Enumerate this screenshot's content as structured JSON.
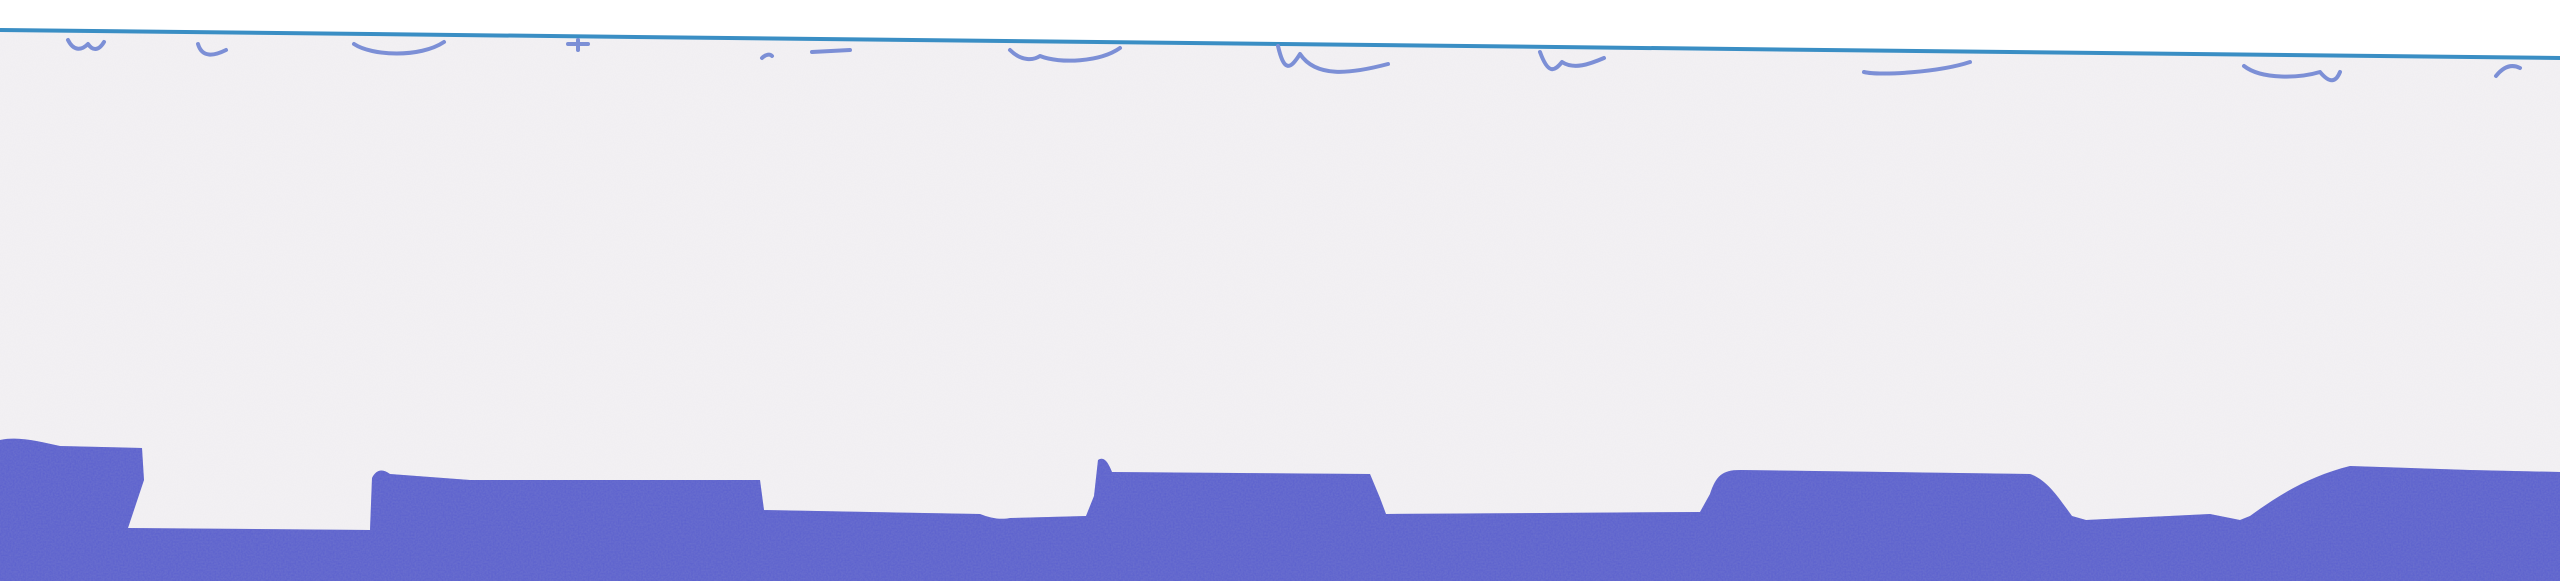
{
  "scene": {
    "paper_color": "#f3f1f4",
    "background_color": "#ffffff",
    "edge_line_color": "#3a8ec4",
    "scribble_color": "#7c8fd6",
    "silhouette_color": "#5a5fcf",
    "silhouette_texture_color": "#4347b8"
  }
}
